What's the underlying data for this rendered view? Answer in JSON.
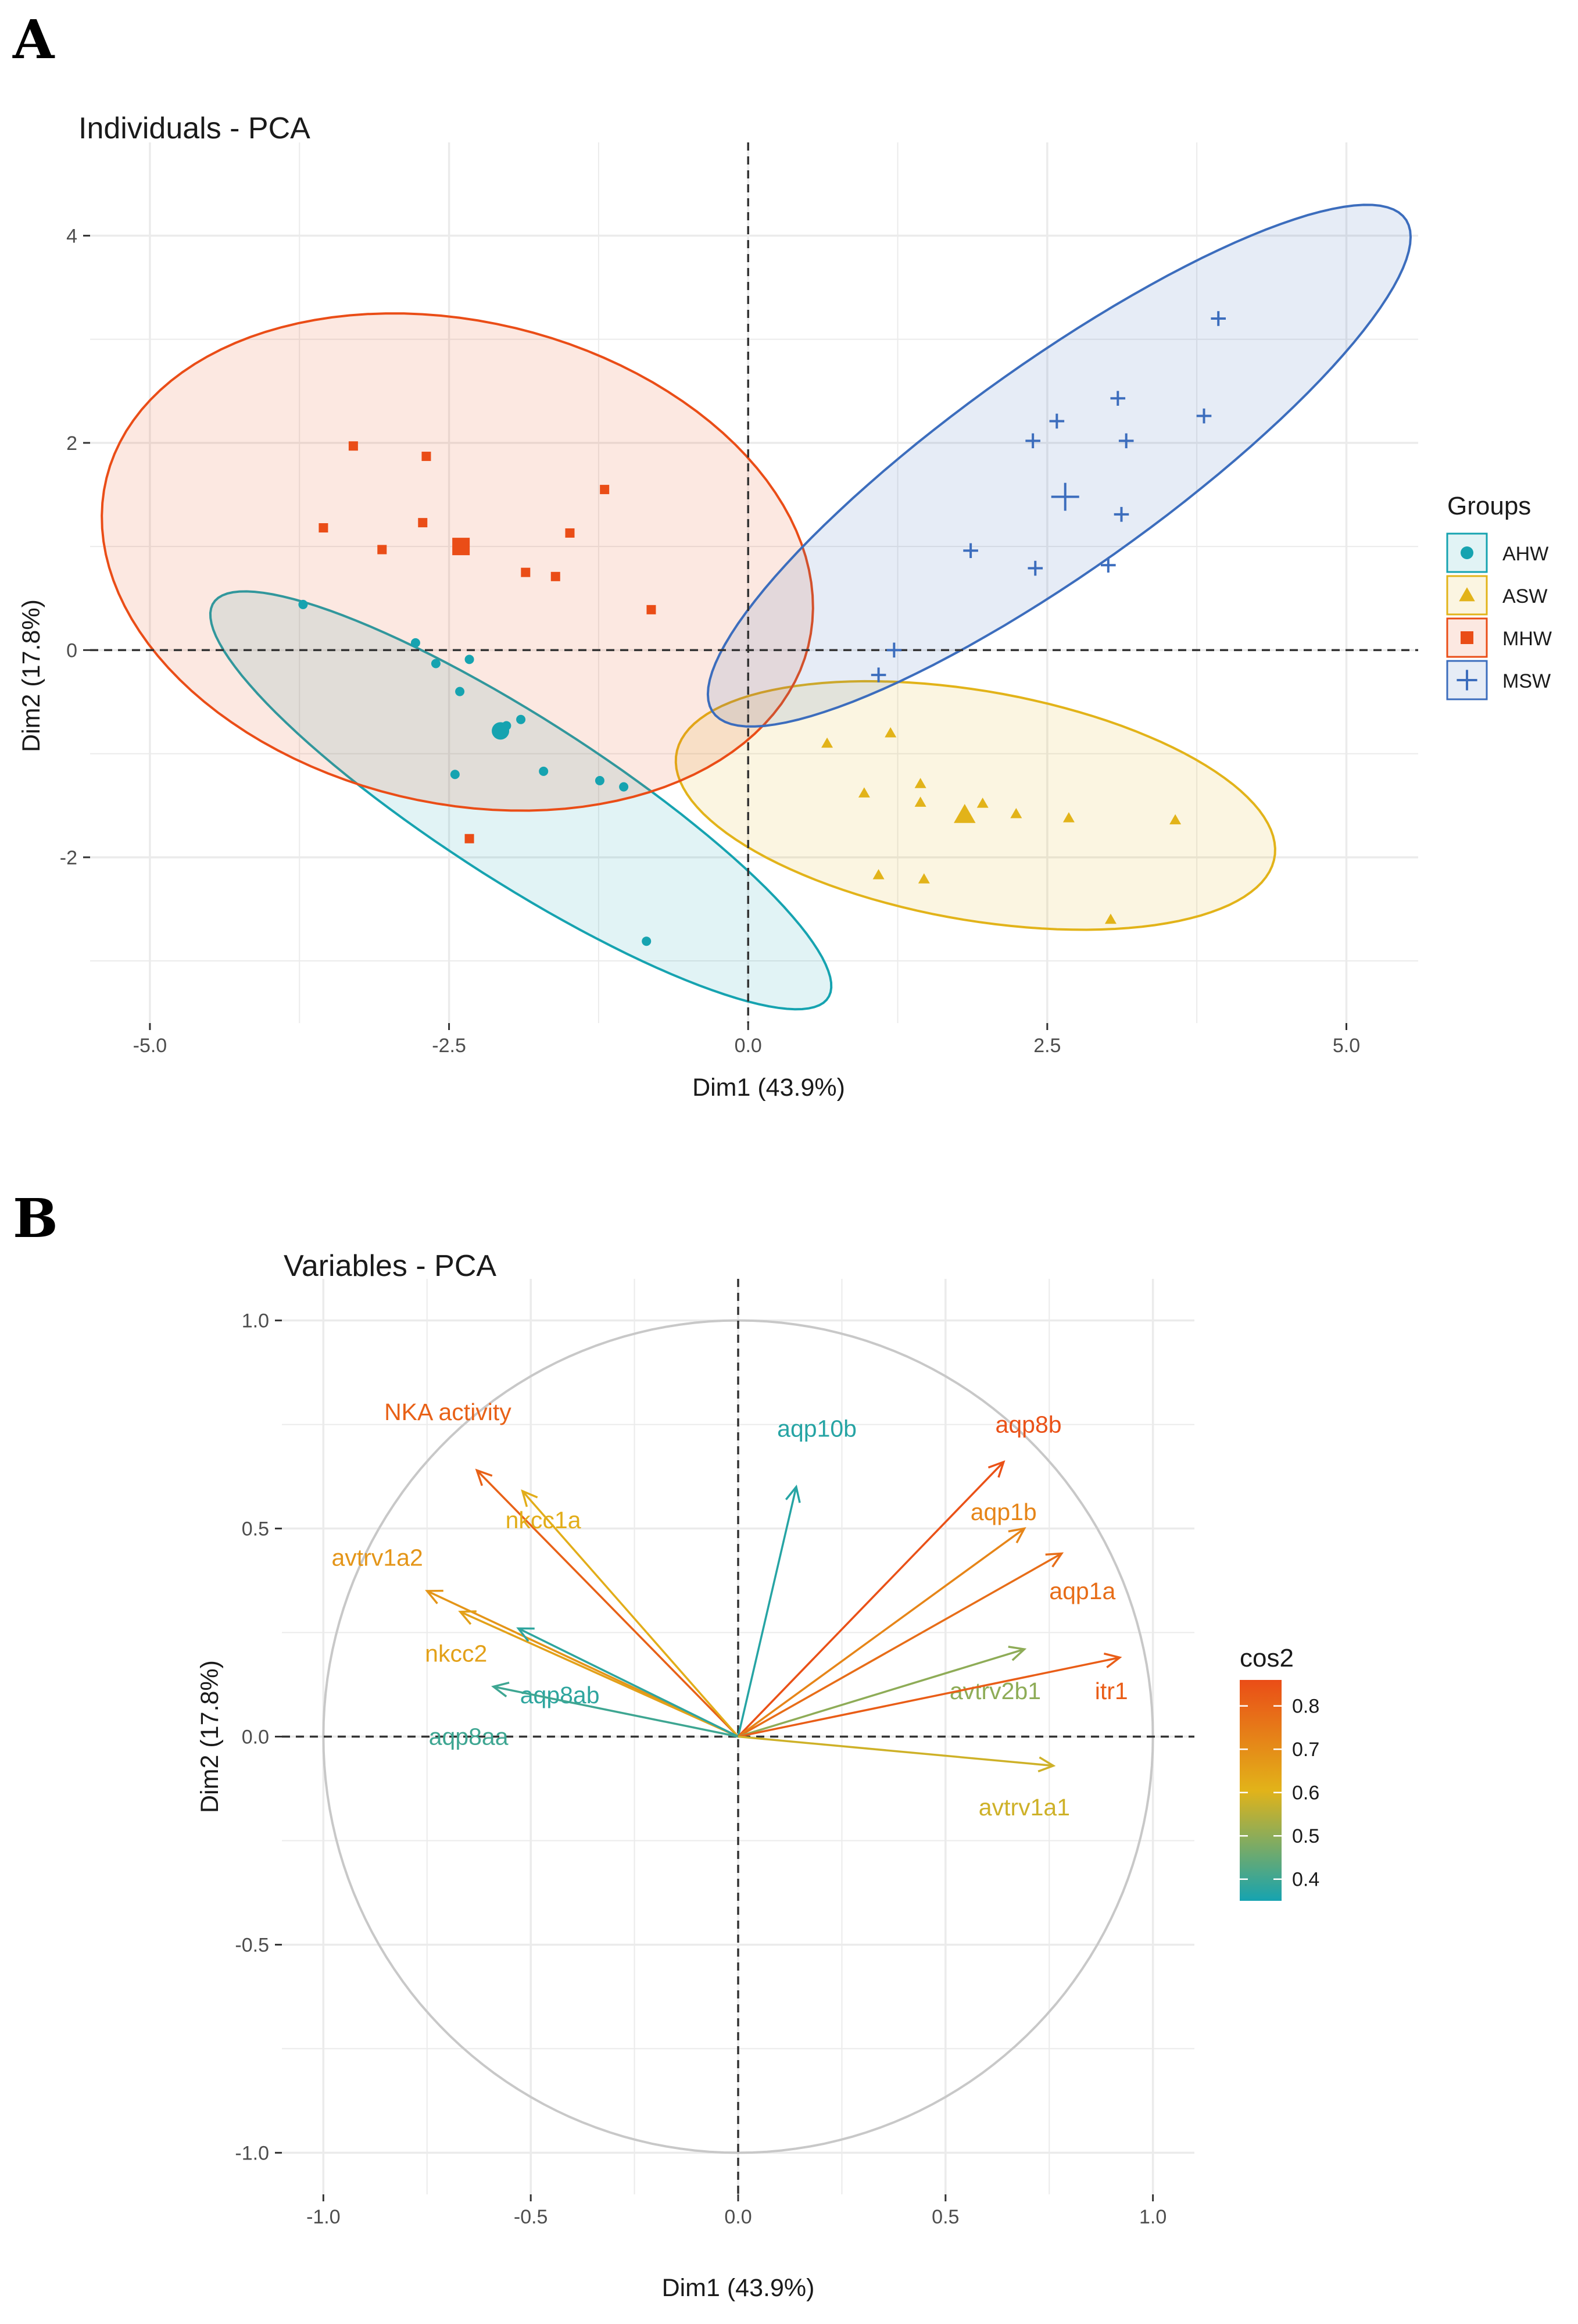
{
  "figure": {
    "panel_a_letter": "A",
    "panel_b_letter": "B"
  },
  "colors": {
    "AHW": "#16a3b0",
    "ASW": "#e2b319",
    "MHW": "#ea4d17",
    "MSW": "#3c6dbd",
    "grid": "#ebebeb",
    "circle": "#c8c8c8",
    "ref_line": "#333333"
  },
  "chart_data": [
    {
      "type": "scatter",
      "title": "Individuals - PCA",
      "xlabel": "Dim1 (43.9%)",
      "ylabel": "Dim2 (17.8%)",
      "xlim": [
        -5.5,
        5.6
      ],
      "ylim": [
        -3.6,
        4.9
      ],
      "xticks": [
        -5.0,
        -2.5,
        0.0,
        2.5,
        5.0
      ],
      "xtick_labels": [
        "-5.0",
        "-2.5",
        "0.0",
        "2.5",
        "5.0"
      ],
      "yticks": [
        -2,
        0,
        2,
        4
      ],
      "ytick_labels": [
        "-2",
        "0",
        "2",
        "4"
      ],
      "reference_lines": {
        "x": 0,
        "y": 0
      },
      "legend": {
        "title": "Groups",
        "position": "right"
      },
      "series": [
        {
          "name": "AHW",
          "marker": "circle",
          "color_key": "AHW",
          "points": [
            [
              -3.72,
              0.44
            ],
            [
              -2.78,
              0.07
            ],
            [
              -2.61,
              -0.13
            ],
            [
              -2.33,
              -0.09
            ],
            [
              -2.41,
              -0.4
            ],
            [
              -2.45,
              -1.2
            ],
            [
              -2.02,
              -0.73
            ],
            [
              -1.9,
              -0.67
            ],
            [
              -1.71,
              -1.17
            ],
            [
              -1.24,
              -1.26
            ],
            [
              -1.04,
              -1.32
            ],
            [
              -0.85,
              -2.81
            ]
          ],
          "centroid": [
            -2.07,
            -0.78
          ],
          "ellipse": {
            "center": [
              -1.9,
              -1.45
            ],
            "semi_major": 3.2,
            "semi_minor": 0.75,
            "angle_deg": -37
          }
        },
        {
          "name": "ASW",
          "marker": "triangle",
          "color_key": "ASW",
          "points": [
            [
              0.66,
              -0.9
            ],
            [
              0.97,
              -1.38
            ],
            [
              1.09,
              -2.17
            ],
            [
              1.19,
              -0.8
            ],
            [
              1.44,
              -1.29
            ],
            [
              1.44,
              -1.47
            ],
            [
              1.47,
              -2.21
            ],
            [
              1.96,
              -1.48
            ],
            [
              2.24,
              -1.58
            ],
            [
              2.68,
              -1.62
            ],
            [
              3.03,
              -2.6
            ],
            [
              3.57,
              -1.64
            ]
          ],
          "centroid": [
            1.81,
            -1.59
          ],
          "ellipse": {
            "center": [
              1.9,
              -1.5
            ],
            "semi_major": 2.55,
            "semi_minor": 1.1,
            "angle_deg": -12
          }
        },
        {
          "name": "MHW",
          "marker": "square",
          "color_key": "MHW",
          "points": [
            [
              -3.3,
              1.97
            ],
            [
              -3.55,
              1.18
            ],
            [
              -3.06,
              0.97
            ],
            [
              -2.69,
              1.87
            ],
            [
              -2.72,
              1.23
            ],
            [
              -1.86,
              0.75
            ],
            [
              -1.61,
              0.71
            ],
            [
              -1.49,
              1.13
            ],
            [
              -1.2,
              1.55
            ],
            [
              -0.81,
              0.39
            ],
            [
              -2.33,
              -1.82
            ]
          ],
          "centroid": [
            -2.4,
            1.0
          ],
          "ellipse": {
            "center": [
              -2.43,
              0.85
            ],
            "semi_major": 3.05,
            "semi_minor": 2.3,
            "angle_deg": -20
          }
        },
        {
          "name": "MSW",
          "marker": "plus",
          "color_key": "MSW",
          "points": [
            [
              1.09,
              -0.24
            ],
            [
              1.22,
              0.0
            ],
            [
              1.86,
              0.96
            ],
            [
              2.4,
              0.79
            ],
            [
              2.38,
              2.02
            ],
            [
              2.58,
              2.21
            ],
            [
              3.01,
              0.82
            ],
            [
              3.09,
              2.43
            ],
            [
              3.12,
              1.31
            ],
            [
              3.16,
              2.02
            ],
            [
              3.81,
              2.26
            ],
            [
              3.93,
              3.2
            ]
          ],
          "centroid": [
            2.65,
            1.48
          ],
          "ellipse": {
            "center": [
              2.6,
              1.78
            ],
            "semi_major": 3.75,
            "semi_minor": 0.95,
            "angle_deg": 40
          }
        }
      ]
    },
    {
      "type": "vector",
      "title": "Variables - PCA",
      "xlabel": "Dim1 (43.9%)",
      "ylabel": "Dim2 (17.8%)",
      "xlim": [
        -1.1,
        1.1
      ],
      "ylim": [
        -1.1,
        1.1
      ],
      "xticks": [
        -1.0,
        -0.5,
        0.0,
        0.5,
        1.0
      ],
      "xtick_labels": [
        "-1.0",
        "-0.5",
        "0.0",
        "0.5",
        "1.0"
      ],
      "yticks": [
        -1.0,
        -0.5,
        0.0,
        0.5,
        1.0
      ],
      "ytick_labels": [
        "-1.0",
        "-0.5",
        "0.0",
        "0.5",
        "1.0"
      ],
      "correlation_circle": true,
      "color_scale": {
        "title": "cos2",
        "range": [
          0.35,
          0.86
        ],
        "ticks": [
          0.4,
          0.5,
          0.6,
          0.7,
          0.8
        ],
        "tick_labels": [
          "0.4",
          "0.5",
          "0.6",
          "0.7",
          "0.8"
        ],
        "colors": [
          "#16a3b0",
          "#e2b319",
          "#ea4d17"
        ]
      },
      "variables": [
        {
          "name": "NKA activity",
          "x": -0.63,
          "y": 0.64,
          "cos2": 0.81,
          "label_at": [
            -0.7,
            0.78
          ]
        },
        {
          "name": "nkcc1a",
          "x": -0.52,
          "y": 0.59,
          "cos2": 0.62,
          "label_at": [
            -0.47,
            0.52
          ]
        },
        {
          "name": "avtrv1a2",
          "x": -0.75,
          "y": 0.35,
          "cos2": 0.68,
          "label_at": [
            -0.87,
            0.43
          ]
        },
        {
          "name": "nkcc2",
          "x": -0.67,
          "y": 0.3,
          "cos2": 0.65,
          "label_at": [
            -0.68,
            0.2
          ]
        },
        {
          "name": "aqp8ab",
          "x": -0.53,
          "y": 0.26,
          "cos2": 0.38,
          "label_at": [
            -0.43,
            0.1
          ]
        },
        {
          "name": "aqp8aa",
          "x": -0.59,
          "y": 0.12,
          "cos2": 0.4,
          "label_at": [
            -0.65,
            0.0
          ]
        },
        {
          "name": "aqp10b",
          "x": 0.14,
          "y": 0.6,
          "cos2": 0.37,
          "label_at": [
            0.19,
            0.74
          ]
        },
        {
          "name": "aqp8b",
          "x": 0.64,
          "y": 0.66,
          "cos2": 0.85,
          "label_at": [
            0.7,
            0.75
          ]
        },
        {
          "name": "aqp1b",
          "x": 0.69,
          "y": 0.5,
          "cos2": 0.72,
          "label_at": [
            0.64,
            0.54
          ]
        },
        {
          "name": "aqp1a",
          "x": 0.78,
          "y": 0.44,
          "cos2": 0.78,
          "label_at": [
            0.83,
            0.35
          ]
        },
        {
          "name": "avtrv2b1",
          "x": 0.69,
          "y": 0.21,
          "cos2": 0.5,
          "label_at": [
            0.62,
            0.11
          ]
        },
        {
          "name": "itr1",
          "x": 0.92,
          "y": 0.19,
          "cos2": 0.82,
          "label_at": [
            0.9,
            0.11
          ]
        },
        {
          "name": "avtrv1a1",
          "x": 0.76,
          "y": -0.07,
          "cos2": 0.58,
          "label_at": [
            0.69,
            -0.17
          ]
        }
      ]
    }
  ]
}
